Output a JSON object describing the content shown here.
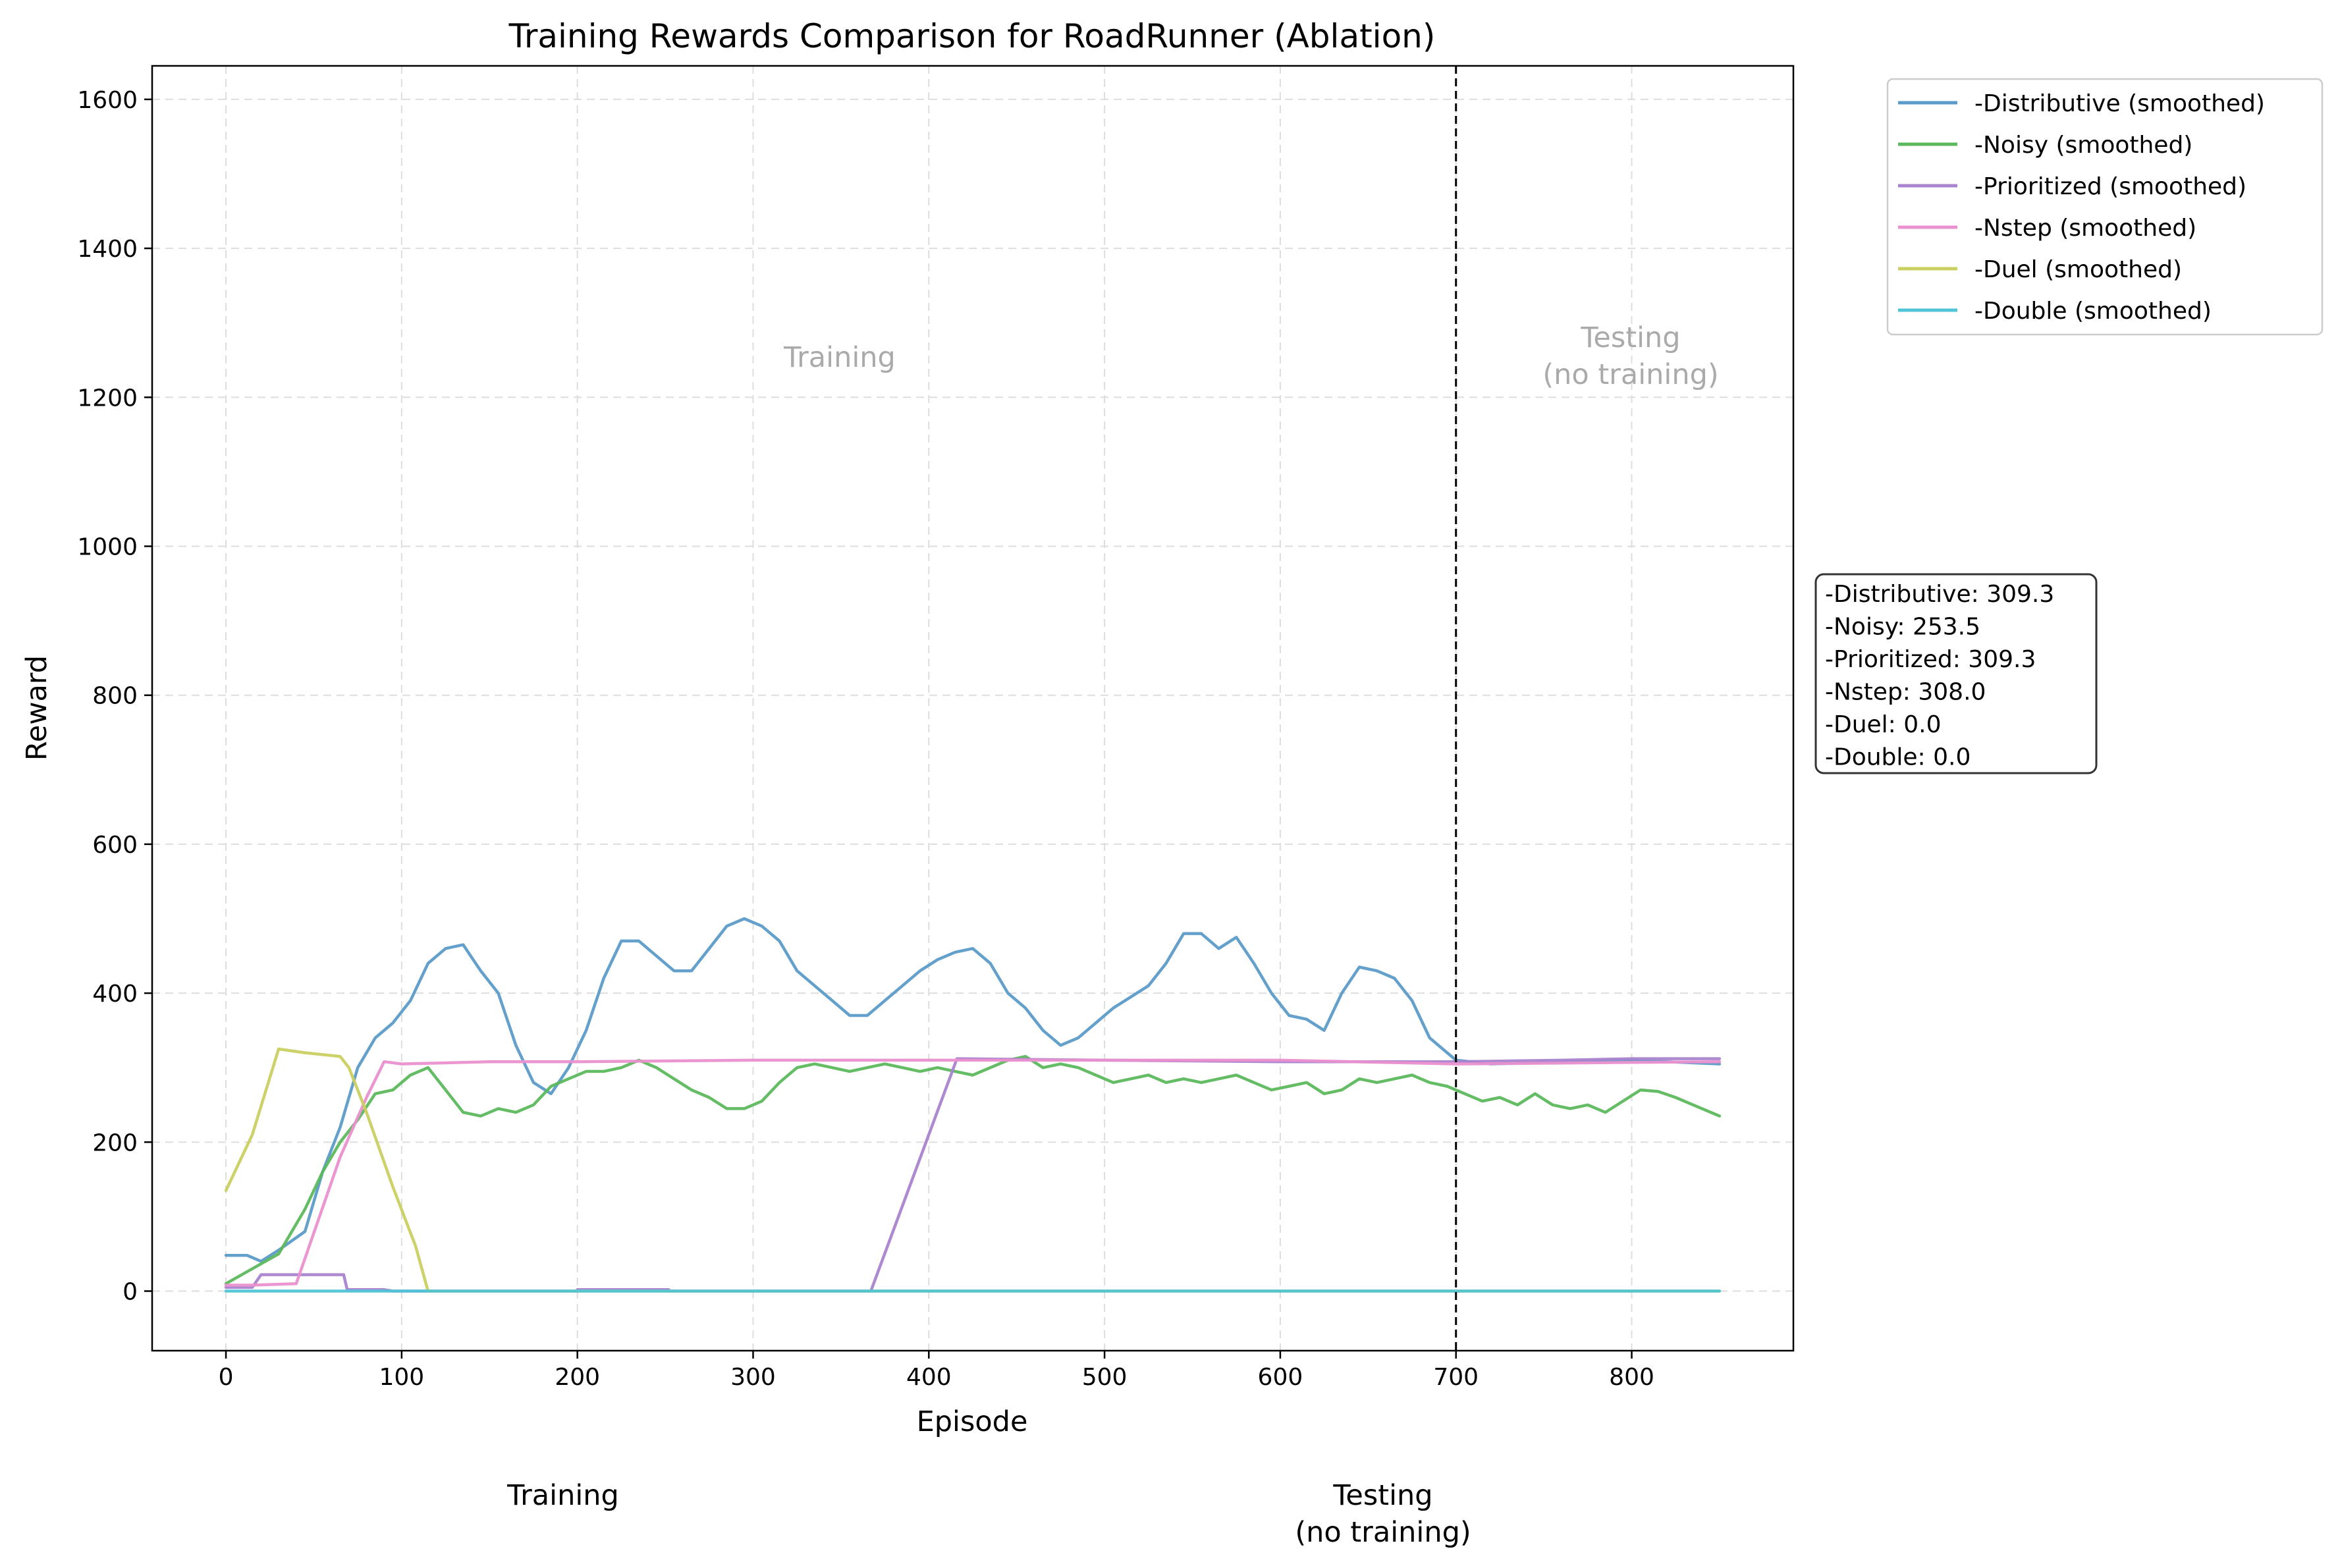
{
  "chart_data": {
    "type": "line",
    "title": "Training Rewards Comparison for RoadRunner (Ablation)",
    "xlabel": "Episode",
    "ylabel": "Reward",
    "xlim": [
      -42,
      892
    ],
    "ylim": [
      -80,
      1645
    ],
    "xticks": [
      0,
      100,
      200,
      300,
      400,
      500,
      600,
      700,
      800
    ],
    "yticks": [
      0,
      200,
      400,
      600,
      800,
      1000,
      1200,
      1400,
      1600
    ],
    "grid": true,
    "legend_position": "outside-top-right",
    "divider_x": 700,
    "region_labels": {
      "training": "Training",
      "testing_line1": "Testing",
      "testing_line2": "(no training)"
    },
    "footer_labels": {
      "training": "Training",
      "testing_line1": "Testing",
      "testing_line2": "(no training)"
    },
    "stats_box": [
      "-Distributive: 309.3",
      "-Noisy: 253.5",
      "-Prioritized: 309.3",
      "-Nstep: 308.0",
      "-Duel: 0.0",
      "-Double: 0.0"
    ],
    "series": [
      {
        "name": "-Distributive (smoothed)",
        "color": "#5b9bc8",
        "points": [
          [
            0,
            48
          ],
          [
            12,
            48
          ],
          [
            20,
            40
          ],
          [
            30,
            55
          ],
          [
            45,
            80
          ],
          [
            55,
            160
          ],
          [
            65,
            220
          ],
          [
            75,
            300
          ],
          [
            85,
            340
          ],
          [
            95,
            360
          ],
          [
            105,
            390
          ],
          [
            115,
            440
          ],
          [
            125,
            460
          ],
          [
            135,
            465
          ],
          [
            145,
            430
          ],
          [
            155,
            400
          ],
          [
            165,
            330
          ],
          [
            175,
            280
          ],
          [
            185,
            265
          ],
          [
            195,
            300
          ],
          [
            205,
            350
          ],
          [
            215,
            420
          ],
          [
            225,
            470
          ],
          [
            235,
            470
          ],
          [
            245,
            450
          ],
          [
            255,
            430
          ],
          [
            265,
            430
          ],
          [
            275,
            460
          ],
          [
            285,
            490
          ],
          [
            295,
            500
          ],
          [
            305,
            490
          ],
          [
            315,
            470
          ],
          [
            325,
            430
          ],
          [
            335,
            410
          ],
          [
            345,
            390
          ],
          [
            355,
            370
          ],
          [
            365,
            370
          ],
          [
            375,
            390
          ],
          [
            385,
            410
          ],
          [
            395,
            430
          ],
          [
            405,
            445
          ],
          [
            415,
            455
          ],
          [
            425,
            460
          ],
          [
            435,
            440
          ],
          [
            445,
            400
          ],
          [
            455,
            380
          ],
          [
            465,
            350
          ],
          [
            475,
            330
          ],
          [
            485,
            340
          ],
          [
            495,
            360
          ],
          [
            505,
            380
          ],
          [
            515,
            395
          ],
          [
            525,
            410
          ],
          [
            535,
            440
          ],
          [
            545,
            480
          ],
          [
            555,
            480
          ],
          [
            565,
            460
          ],
          [
            575,
            475
          ],
          [
            585,
            440
          ],
          [
            595,
            400
          ],
          [
            605,
            370
          ],
          [
            615,
            365
          ],
          [
            625,
            350
          ],
          [
            635,
            400
          ],
          [
            645,
            435
          ],
          [
            655,
            430
          ],
          [
            665,
            420
          ],
          [
            675,
            390
          ],
          [
            685,
            340
          ],
          [
            695,
            320
          ],
          [
            700,
            310
          ],
          [
            720,
            305
          ],
          [
            760,
            308
          ],
          [
            800,
            310
          ],
          [
            850,
            305
          ]
        ]
      },
      {
        "name": "-Noisy (smoothed)",
        "color": "#5cb85c",
        "points": [
          [
            0,
            10
          ],
          [
            15,
            30
          ],
          [
            30,
            50
          ],
          [
            45,
            110
          ],
          [
            55,
            160
          ],
          [
            65,
            200
          ],
          [
            75,
            230
          ],
          [
            85,
            265
          ],
          [
            95,
            270
          ],
          [
            105,
            290
          ],
          [
            115,
            300
          ],
          [
            125,
            270
          ],
          [
            135,
            240
          ],
          [
            145,
            235
          ],
          [
            155,
            245
          ],
          [
            165,
            240
          ],
          [
            175,
            250
          ],
          [
            185,
            275
          ],
          [
            195,
            285
          ],
          [
            205,
            295
          ],
          [
            215,
            295
          ],
          [
            225,
            300
          ],
          [
            235,
            310
          ],
          [
            245,
            300
          ],
          [
            255,
            285
          ],
          [
            265,
            270
          ],
          [
            275,
            260
          ],
          [
            285,
            245
          ],
          [
            295,
            245
          ],
          [
            305,
            255
          ],
          [
            315,
            280
          ],
          [
            325,
            300
          ],
          [
            335,
            305
          ],
          [
            345,
            300
          ],
          [
            355,
            295
          ],
          [
            365,
            300
          ],
          [
            375,
            305
          ],
          [
            385,
            300
          ],
          [
            395,
            295
          ],
          [
            405,
            300
          ],
          [
            415,
            295
          ],
          [
            425,
            290
          ],
          [
            435,
            300
          ],
          [
            445,
            310
          ],
          [
            455,
            315
          ],
          [
            465,
            300
          ],
          [
            475,
            305
          ],
          [
            485,
            300
          ],
          [
            495,
            290
          ],
          [
            505,
            280
          ],
          [
            515,
            285
          ],
          [
            525,
            290
          ],
          [
            535,
            280
          ],
          [
            545,
            285
          ],
          [
            555,
            280
          ],
          [
            565,
            285
          ],
          [
            575,
            290
          ],
          [
            585,
            280
          ],
          [
            595,
            270
          ],
          [
            605,
            275
          ],
          [
            615,
            280
          ],
          [
            625,
            265
          ],
          [
            635,
            270
          ],
          [
            645,
            285
          ],
          [
            655,
            280
          ],
          [
            665,
            285
          ],
          [
            675,
            290
          ],
          [
            685,
            280
          ],
          [
            695,
            275
          ],
          [
            705,
            265
          ],
          [
            715,
            255
          ],
          [
            725,
            260
          ],
          [
            735,
            250
          ],
          [
            745,
            265
          ],
          [
            755,
            250
          ],
          [
            765,
            245
          ],
          [
            775,
            250
          ],
          [
            785,
            240
          ],
          [
            795,
            255
          ],
          [
            805,
            270
          ],
          [
            815,
            268
          ],
          [
            825,
            260
          ],
          [
            835,
            250
          ],
          [
            845,
            240
          ],
          [
            850,
            235
          ]
        ]
      },
      {
        "name": "-Prioritized (smoothed)",
        "color": "#a983cf",
        "points": [
          [
            0,
            5
          ],
          [
            15,
            5
          ],
          [
            20,
            22
          ],
          [
            50,
            22
          ],
          [
            67,
            22
          ],
          [
            69,
            2
          ],
          [
            90,
            2
          ],
          [
            95,
            0
          ],
          [
            200,
            0
          ],
          [
            200,
            2
          ],
          [
            252,
            2
          ],
          [
            252,
            0
          ],
          [
            367,
            0
          ],
          [
            416,
            312
          ],
          [
            500,
            310
          ],
          [
            600,
            308
          ],
          [
            700,
            308
          ],
          [
            760,
            310
          ],
          [
            800,
            312
          ],
          [
            850,
            312
          ]
        ]
      },
      {
        "name": "-Nstep (smoothed)",
        "color": "#ea90cf",
        "points": [
          [
            0,
            8
          ],
          [
            15,
            8
          ],
          [
            40,
            10
          ],
          [
            65,
            180
          ],
          [
            80,
            260
          ],
          [
            90,
            308
          ],
          [
            100,
            305
          ],
          [
            150,
            308
          ],
          [
            200,
            308
          ],
          [
            300,
            310
          ],
          [
            400,
            310
          ],
          [
            500,
            310
          ],
          [
            600,
            310
          ],
          [
            700,
            305
          ],
          [
            850,
            308
          ]
        ]
      },
      {
        "name": "-Duel (smoothed)",
        "color": "#c9cf60",
        "points": [
          [
            0,
            135
          ],
          [
            15,
            210
          ],
          [
            30,
            325
          ],
          [
            45,
            320
          ],
          [
            65,
            315
          ],
          [
            70,
            300
          ],
          [
            80,
            240
          ],
          [
            95,
            140
          ],
          [
            108,
            60
          ],
          [
            115,
            0
          ],
          [
            850,
            0
          ]
        ]
      },
      {
        "name": "-Double (smoothed)",
        "color": "#4fc4d6",
        "points": [
          [
            0,
            0
          ],
          [
            850,
            0
          ]
        ]
      }
    ]
  }
}
